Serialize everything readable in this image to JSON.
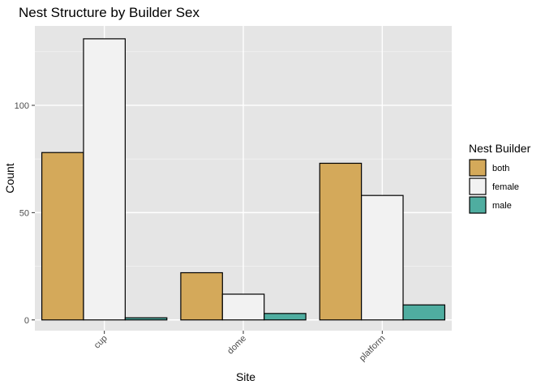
{
  "chart_data": {
    "type": "bar",
    "title": "Nest Structure by Builder Sex",
    "xlabel": "Site",
    "ylabel": "Count",
    "categories": [
      "cup",
      "dome",
      "platform"
    ],
    "series": [
      {
        "name": "both",
        "color": "#d4a95a",
        "values": [
          78,
          22,
          73
        ]
      },
      {
        "name": "female",
        "color": "#f2f2f2",
        "values": [
          131,
          12,
          58
        ]
      },
      {
        "name": "male",
        "color": "#4fada0",
        "values": [
          1,
          3,
          7
        ]
      }
    ],
    "ylim": [
      -5,
      137
    ],
    "yticks": [
      0,
      50,
      100
    ],
    "grid": true,
    "legend_title": "Nest Builder",
    "legend_position": "right",
    "panel_background": "#e5e5e5",
    "x_tick_rotation": "45deg"
  }
}
